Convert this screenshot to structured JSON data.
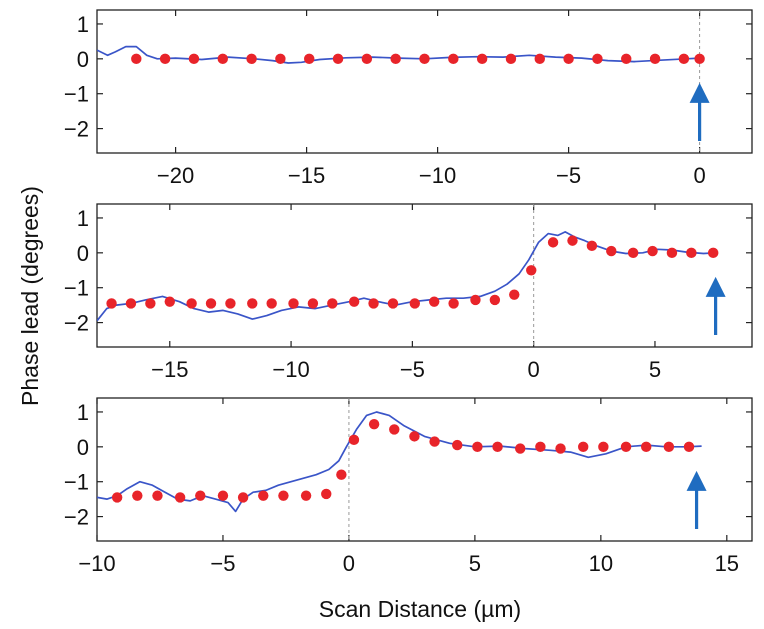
{
  "chart_data": {
    "ylabel": "Phase lead (degrees)",
    "xlabel": "Scan Distance (µm)",
    "panels": [
      {
        "type": "scatter+line",
        "xlim": [
          -23,
          2
        ],
        "ylim": [
          -2.7,
          1.4
        ],
        "xticks": [
          -20,
          -15,
          -10,
          -5,
          0
        ],
        "yticks": [
          1,
          0,
          -1,
          -2
        ],
        "vline_x": 0,
        "arrow_x": 0,
        "points": [
          [
            -21.5,
            0
          ],
          [
            -20.4,
            0
          ],
          [
            -19.3,
            0
          ],
          [
            -18.2,
            0
          ],
          [
            -17.1,
            0
          ],
          [
            -16,
            0
          ],
          [
            -14.9,
            0
          ],
          [
            -13.8,
            0
          ],
          [
            -12.7,
            0
          ],
          [
            -11.6,
            0
          ],
          [
            -10.5,
            0
          ],
          [
            -9.4,
            0
          ],
          [
            -8.3,
            0
          ],
          [
            -7.2,
            0
          ],
          [
            -6.1,
            0
          ],
          [
            -5,
            0
          ],
          [
            -3.9,
            0
          ],
          [
            -2.8,
            0
          ],
          [
            -1.7,
            0
          ],
          [
            -0.6,
            0
          ],
          [
            0,
            0
          ]
        ],
        "trace": [
          [
            -23,
            0.25
          ],
          [
            -22.6,
            0.1
          ],
          [
            -22.3,
            0.2
          ],
          [
            -21.9,
            0.35
          ],
          [
            -21.5,
            0.35
          ],
          [
            -21.1,
            0.1
          ],
          [
            -20.7,
            0.0
          ],
          [
            -20,
            0.02
          ],
          [
            -19,
            -0.02
          ],
          [
            -18,
            0.05
          ],
          [
            -17,
            0.0
          ],
          [
            -16.3,
            -0.05
          ],
          [
            -15.7,
            -0.12
          ],
          [
            -15.2,
            -0.1
          ],
          [
            -14.5,
            -0.02
          ],
          [
            -13.5,
            0.03
          ],
          [
            -12.5,
            0.05
          ],
          [
            -11.5,
            0.02
          ],
          [
            -10.5,
            0.0
          ],
          [
            -9.5,
            0.04
          ],
          [
            -8.5,
            0.06
          ],
          [
            -7.5,
            0.05
          ],
          [
            -6.5,
            0.1
          ],
          [
            -5.5,
            0.05
          ],
          [
            -4.5,
            0.02
          ],
          [
            -3.5,
            -0.05
          ],
          [
            -2.5,
            -0.08
          ],
          [
            -1.5,
            -0.04
          ],
          [
            -0.5,
            0.0
          ],
          [
            0,
            0.02
          ]
        ]
      },
      {
        "type": "scatter+line",
        "xlim": [
          -18,
          9
        ],
        "ylim": [
          -2.7,
          1.4
        ],
        "xticks": [
          -15,
          -10,
          -5,
          0,
          5
        ],
        "yticks": [
          1,
          0,
          -1,
          -2
        ],
        "vline_x": 0,
        "arrow_x": 7.5,
        "points": [
          [
            -17.4,
            -1.45
          ],
          [
            -16.6,
            -1.45
          ],
          [
            -15.8,
            -1.45
          ],
          [
            -15,
            -1.4
          ],
          [
            -14.1,
            -1.45
          ],
          [
            -13.3,
            -1.45
          ],
          [
            -12.5,
            -1.45
          ],
          [
            -11.6,
            -1.45
          ],
          [
            -10.8,
            -1.45
          ],
          [
            -9.9,
            -1.45
          ],
          [
            -9.1,
            -1.45
          ],
          [
            -8.3,
            -1.45
          ],
          [
            -7.4,
            -1.4
          ],
          [
            -6.6,
            -1.45
          ],
          [
            -5.8,
            -1.45
          ],
          [
            -4.9,
            -1.45
          ],
          [
            -4.1,
            -1.4
          ],
          [
            -3.3,
            -1.45
          ],
          [
            -2.4,
            -1.35
          ],
          [
            -1.6,
            -1.35
          ],
          [
            -0.8,
            -1.2
          ],
          [
            -0.1,
            -0.5
          ],
          [
            0.8,
            0.3
          ],
          [
            1.6,
            0.35
          ],
          [
            2.4,
            0.2
          ],
          [
            3.2,
            0.05
          ],
          [
            4.1,
            0.0
          ],
          [
            4.9,
            0.05
          ],
          [
            5.7,
            0.0
          ],
          [
            6.5,
            0.0
          ],
          [
            7.4,
            0.0
          ]
        ],
        "trace": [
          [
            -18,
            -1.95
          ],
          [
            -17.6,
            -1.6
          ],
          [
            -17.2,
            -1.5
          ],
          [
            -16.6,
            -1.45
          ],
          [
            -16,
            -1.35
          ],
          [
            -15.3,
            -1.25
          ],
          [
            -14.6,
            -1.4
          ],
          [
            -14,
            -1.6
          ],
          [
            -13.4,
            -1.7
          ],
          [
            -12.8,
            -1.65
          ],
          [
            -12.2,
            -1.75
          ],
          [
            -11.6,
            -1.9
          ],
          [
            -11,
            -1.8
          ],
          [
            -10.4,
            -1.65
          ],
          [
            -9.7,
            -1.55
          ],
          [
            -9,
            -1.6
          ],
          [
            -8.3,
            -1.5
          ],
          [
            -7.6,
            -1.4
          ],
          [
            -7,
            -1.3
          ],
          [
            -6.4,
            -1.4
          ],
          [
            -5.7,
            -1.5
          ],
          [
            -5,
            -1.4
          ],
          [
            -4.3,
            -1.35
          ],
          [
            -3.6,
            -1.3
          ],
          [
            -2.9,
            -1.3
          ],
          [
            -2.2,
            -1.25
          ],
          [
            -1.6,
            -1.1
          ],
          [
            -1.1,
            -0.9
          ],
          [
            -0.6,
            -0.6
          ],
          [
            -0.2,
            -0.2
          ],
          [
            0.2,
            0.3
          ],
          [
            0.6,
            0.55
          ],
          [
            1.0,
            0.5
          ],
          [
            1.3,
            0.6
          ],
          [
            1.7,
            0.45
          ],
          [
            2.1,
            0.35
          ],
          [
            2.6,
            0.2
          ],
          [
            3.2,
            0.05
          ],
          [
            3.8,
            -0.02
          ],
          [
            4.5,
            0.0
          ],
          [
            5.1,
            0.1
          ],
          [
            5.7,
            0.08
          ],
          [
            6.3,
            0.02
          ],
          [
            7.0,
            -0.02
          ],
          [
            7.5,
            0.0
          ]
        ]
      },
      {
        "type": "scatter+line",
        "xlim": [
          -10,
          16
        ],
        "ylim": [
          -2.7,
          1.4
        ],
        "xticks": [
          -10,
          -5,
          0,
          5,
          10,
          15
        ],
        "yticks": [
          1,
          0,
          -1,
          -2
        ],
        "vline_x": 0,
        "arrow_x": 13.8,
        "points": [
          [
            -9.2,
            -1.45
          ],
          [
            -8.4,
            -1.4
          ],
          [
            -7.6,
            -1.4
          ],
          [
            -6.7,
            -1.45
          ],
          [
            -5.9,
            -1.4
          ],
          [
            -5.0,
            -1.4
          ],
          [
            -4.2,
            -1.45
          ],
          [
            -3.4,
            -1.4
          ],
          [
            -2.6,
            -1.4
          ],
          [
            -1.7,
            -1.4
          ],
          [
            -0.9,
            -1.35
          ],
          [
            -0.3,
            -0.8
          ],
          [
            0.2,
            0.2
          ],
          [
            1.0,
            0.65
          ],
          [
            1.8,
            0.5
          ],
          [
            2.6,
            0.3
          ],
          [
            3.4,
            0.15
          ],
          [
            4.3,
            0.05
          ],
          [
            5.1,
            0.0
          ],
          [
            5.9,
            0.0
          ],
          [
            6.8,
            -0.05
          ],
          [
            7.6,
            0.0
          ],
          [
            8.4,
            -0.05
          ],
          [
            9.3,
            0.0
          ],
          [
            10.1,
            0.0
          ],
          [
            11.0,
            0.0
          ],
          [
            11.8,
            0.0
          ],
          [
            12.7,
            0.0
          ],
          [
            13.5,
            0.0
          ]
        ],
        "trace": [
          [
            -10,
            -1.45
          ],
          [
            -9.6,
            -1.5
          ],
          [
            -9.2,
            -1.4
          ],
          [
            -8.8,
            -1.2
          ],
          [
            -8.3,
            -1.0
          ],
          [
            -7.8,
            -1.1
          ],
          [
            -7.3,
            -1.3
          ],
          [
            -6.8,
            -1.5
          ],
          [
            -6.3,
            -1.55
          ],
          [
            -5.8,
            -1.4
          ],
          [
            -5.3,
            -1.5
          ],
          [
            -4.8,
            -1.6
          ],
          [
            -4.5,
            -1.85
          ],
          [
            -4.2,
            -1.5
          ],
          [
            -3.8,
            -1.3
          ],
          [
            -3.3,
            -1.25
          ],
          [
            -2.8,
            -1.1
          ],
          [
            -2.3,
            -1.0
          ],
          [
            -1.8,
            -0.9
          ],
          [
            -1.3,
            -0.8
          ],
          [
            -0.8,
            -0.65
          ],
          [
            -0.4,
            -0.4
          ],
          [
            -0.1,
            0.0
          ],
          [
            0.3,
            0.5
          ],
          [
            0.7,
            0.9
          ],
          [
            1.1,
            1.0
          ],
          [
            1.6,
            0.9
          ],
          [
            2.2,
            0.6
          ],
          [
            3.0,
            0.3
          ],
          [
            4.0,
            0.1
          ],
          [
            5.0,
            0.0
          ],
          [
            6.0,
            0.02
          ],
          [
            7.0,
            -0.05
          ],
          [
            8.0,
            -0.1
          ],
          [
            8.8,
            -0.15
          ],
          [
            9.5,
            -0.3
          ],
          [
            10.2,
            -0.2
          ],
          [
            11.0,
            0.0
          ],
          [
            11.8,
            0.05
          ],
          [
            12.6,
            0.0
          ],
          [
            13.4,
            0.0
          ],
          [
            14.0,
            0.02
          ]
        ]
      }
    ]
  }
}
